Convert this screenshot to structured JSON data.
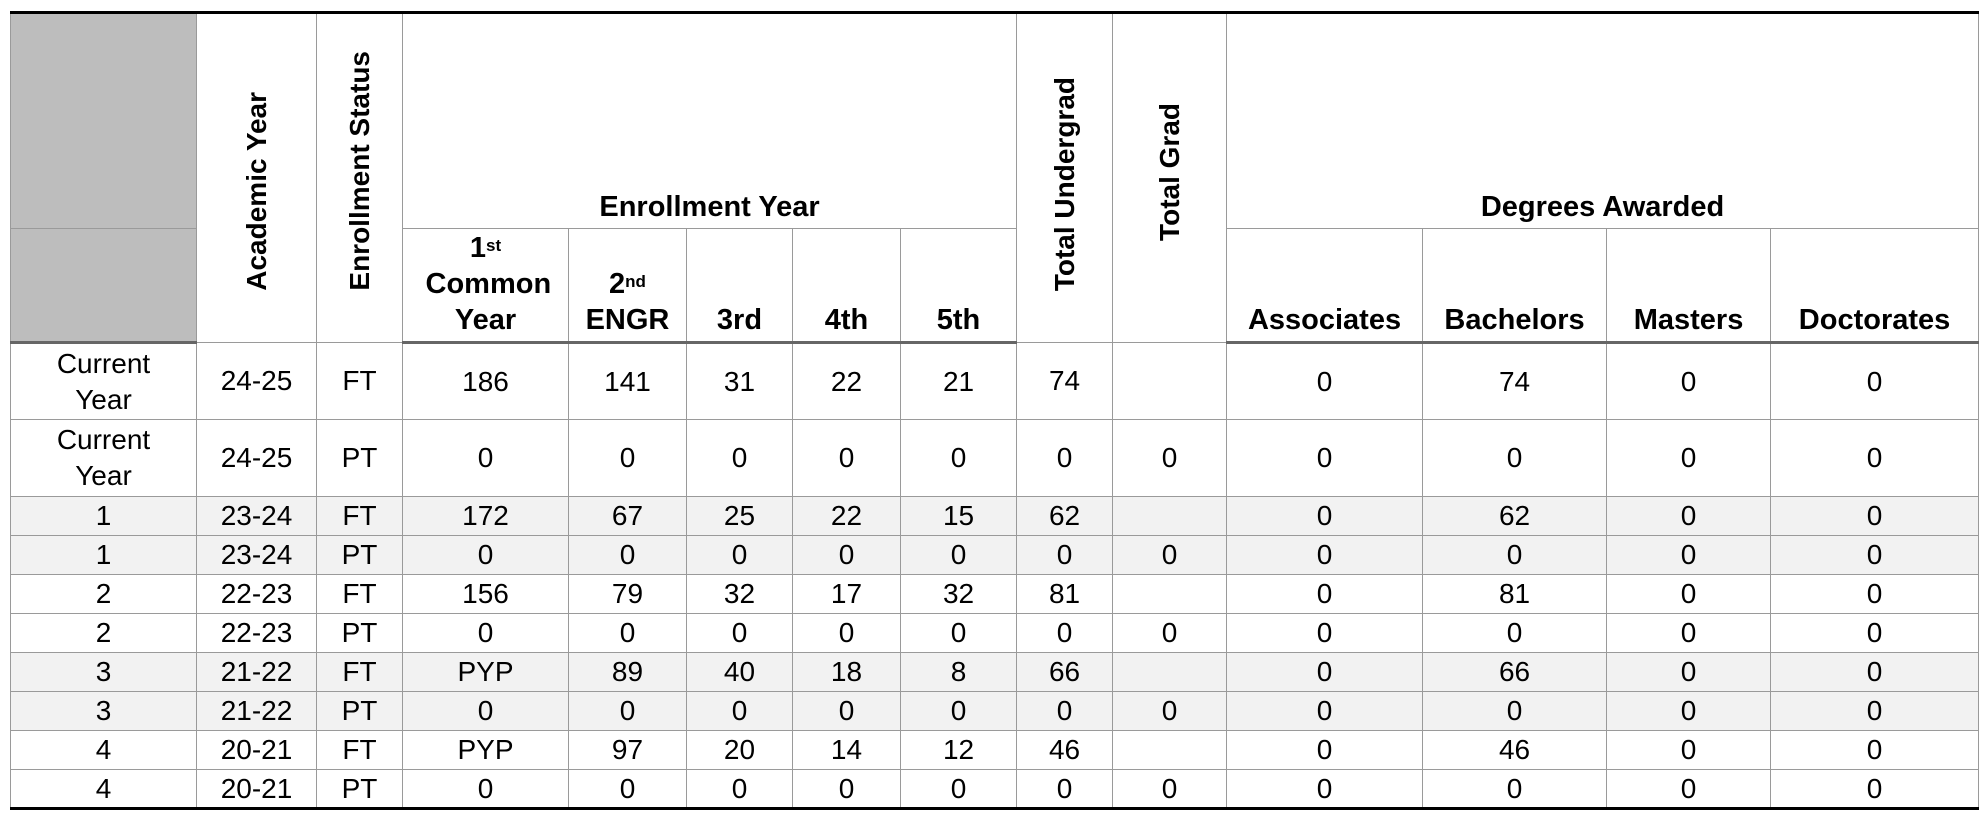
{
  "headers": {
    "academic_year": "Academic Year",
    "enrollment_status": "Enrollment Status",
    "enrollment_year": "Enrollment Year",
    "total_undergrad": "Total Undergrad",
    "total_grad": "Total Grad",
    "degrees_awarded": "Degrees Awarded",
    "first_num": "1",
    "first_sup": "st",
    "first_rest": "Common Year",
    "second_num": "2",
    "second_sup": "nd",
    "second_rest": "ENGR",
    "third": "3rd",
    "fourth": "4th",
    "fifth": "5th",
    "associates": "Associates",
    "bachelors": "Bachelors",
    "masters": "Masters",
    "doctorates": "Doctorates"
  },
  "rows": [
    [
      "Current Year",
      "24-25",
      "FT",
      "186",
      "141",
      "31",
      "22",
      "21",
      "74",
      "",
      "0",
      "74",
      "0",
      "0"
    ],
    [
      "Current Year",
      "24-25",
      "PT",
      "0",
      "0",
      "0",
      "0",
      "0",
      "0",
      "0",
      "0",
      "0",
      "0",
      "0"
    ],
    [
      "1",
      "23-24",
      "FT",
      "172",
      "67",
      "25",
      "22",
      "15",
      "62",
      "",
      "0",
      "62",
      "0",
      "0"
    ],
    [
      "1",
      "23-24",
      "PT",
      "0",
      "0",
      "0",
      "0",
      "0",
      "0",
      "0",
      "0",
      "0",
      "0",
      "0"
    ],
    [
      "2",
      "22-23",
      "FT",
      "156",
      "79",
      "32",
      "17",
      "32",
      "81",
      "",
      "0",
      "81",
      "0",
      "0"
    ],
    [
      "2",
      "22-23",
      "PT",
      "0",
      "0",
      "0",
      "0",
      "0",
      "0",
      "0",
      "0",
      "0",
      "0",
      "0"
    ],
    [
      "3",
      "21-22",
      "FT",
      "PYP",
      "89",
      "40",
      "18",
      "8",
      "66",
      "",
      "0",
      "66",
      "0",
      "0"
    ],
    [
      "3",
      "21-22",
      "PT",
      "0",
      "0",
      "0",
      "0",
      "0",
      "0",
      "0",
      "0",
      "0",
      "0",
      "0"
    ],
    [
      "4",
      "20-21",
      "FT",
      "PYP",
      "97",
      "20",
      "14",
      "12",
      "46",
      "",
      "0",
      "46",
      "0",
      "0"
    ],
    [
      "4",
      "20-21",
      "PT",
      "0",
      "0",
      "0",
      "0",
      "0",
      "0",
      "0",
      "0",
      "0",
      "0",
      "0"
    ]
  ]
}
